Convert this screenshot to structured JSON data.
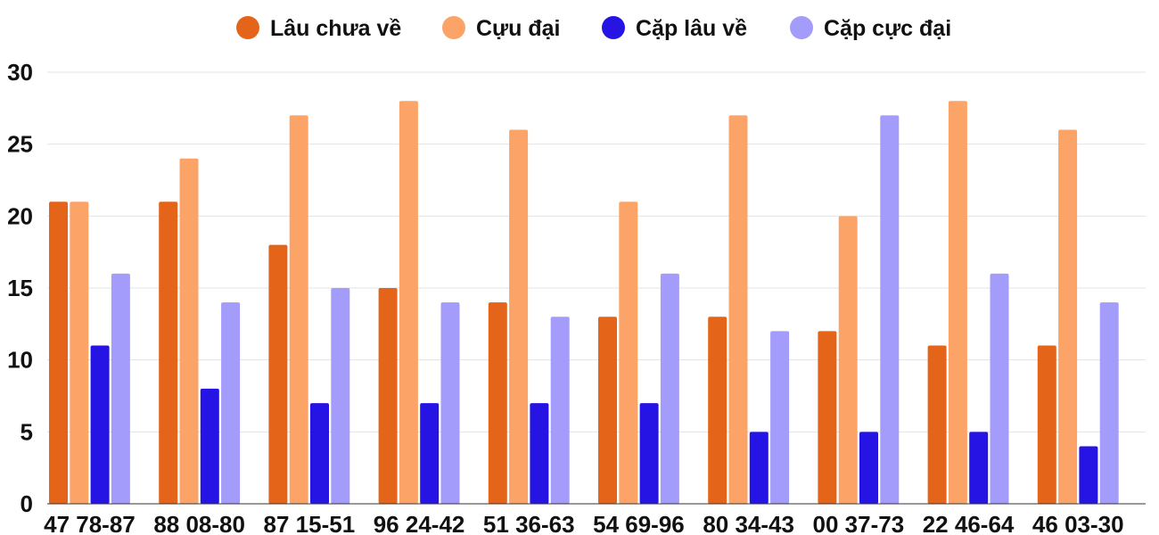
{
  "chart_data": {
    "type": "bar",
    "title": "",
    "xlabel": "",
    "ylabel": "",
    "ylim": [
      0,
      30
    ],
    "yticks": [
      0,
      5,
      10,
      15,
      20,
      25,
      30
    ],
    "grid": true,
    "legend_position": "top-center",
    "categories": [
      "47 78-87",
      "88 08-80",
      "87 15-51",
      "96 24-42",
      "51 36-63",
      "54 69-96",
      "80 34-43",
      "00 37-73",
      "22 46-64",
      "46 03-30"
    ],
    "series": [
      {
        "name": "Lâu chưa về",
        "color": "#e4641a",
        "values": [
          21,
          21,
          18,
          15,
          14,
          13,
          13,
          12,
          11,
          11
        ]
      },
      {
        "name": "Cựu đại",
        "color": "#fca468",
        "values": [
          21,
          24,
          27,
          28,
          26,
          21,
          27,
          20,
          28,
          26
        ]
      },
      {
        "name": "Cặp lâu về",
        "color": "#2514e3",
        "values": [
          11,
          8,
          7,
          7,
          7,
          7,
          5,
          5,
          5,
          4
        ]
      },
      {
        "name": "Cặp cực đại",
        "color": "#a39cfb",
        "values": [
          16,
          14,
          15,
          14,
          13,
          16,
          12,
          27,
          16,
          14
        ]
      }
    ]
  }
}
